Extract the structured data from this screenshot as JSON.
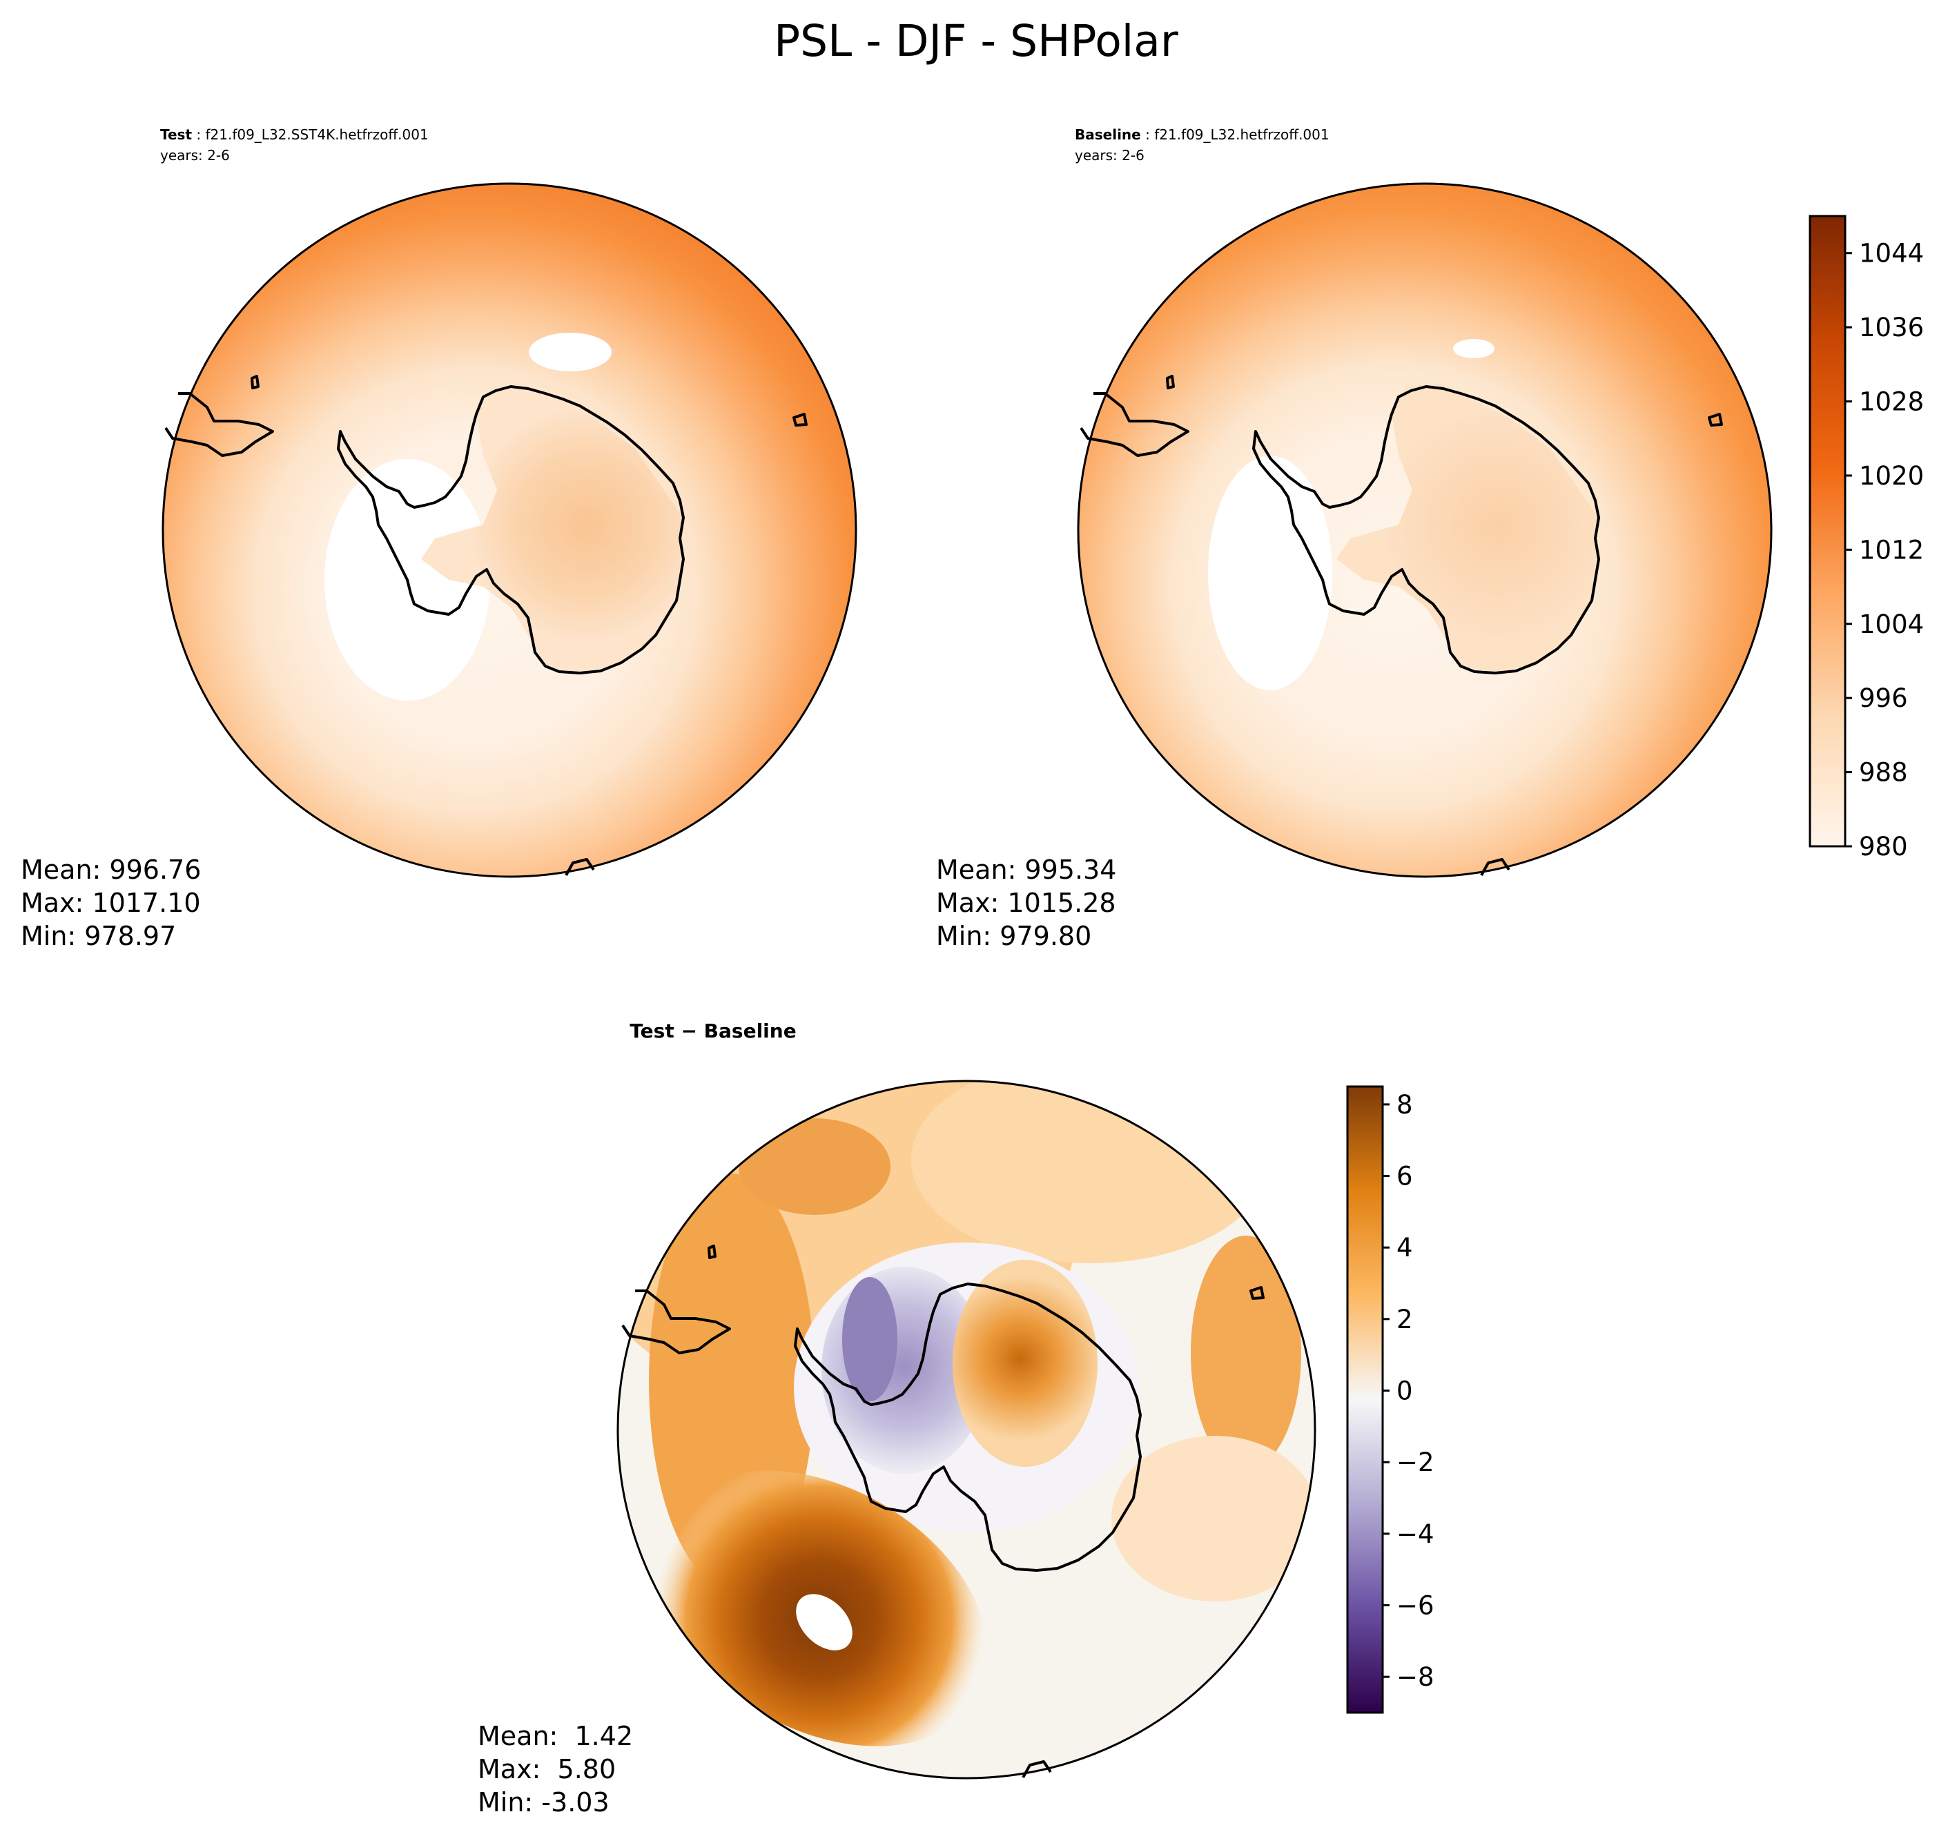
{
  "figure_title": "PSL - DJF - SHPolar",
  "chart_data": [
    {
      "type": "heatmap",
      "projection": "south-polar-stereographic",
      "panel": "test",
      "label_bold": "Test",
      "case_name": "f21.f09_L32.SST4K.hetfrzoff.001",
      "years_text": "years: 2-6",
      "stats": {
        "mean": "Mean: 996.76",
        "max": "Max: 1017.10",
        "min": "Min: 978.97"
      },
      "field_range": [
        978.97,
        1017.1
      ]
    },
    {
      "type": "heatmap",
      "projection": "south-polar-stereographic",
      "panel": "baseline",
      "label_bold": "Baseline",
      "case_name": "f21.f09_L32.hetfrzoff.001",
      "years_text": "years: 2-6",
      "stats": {
        "mean": "Mean: 995.34",
        "max": "Max: 1015.28",
        "min": "Min: 979.80"
      },
      "field_range": [
        979.8,
        1015.28
      ],
      "colorbar": {
        "colormap": "Oranges",
        "vmin": 980,
        "vmax": 1048,
        "ticks": [
          980,
          988,
          996,
          1004,
          1012,
          1020,
          1028,
          1036,
          1044
        ],
        "tick_labels": [
          "980",
          "988",
          "996",
          "1004",
          "1012",
          "1020",
          "1028",
          "1036",
          "1044"
        ],
        "colors": [
          "#fff5eb",
          "#fdd9b4",
          "#fda762",
          "#f16913",
          "#c94703",
          "#7f2704"
        ]
      }
    },
    {
      "type": "heatmap",
      "projection": "south-polar-stereographic",
      "panel": "difference",
      "title": "Test − Baseline",
      "stats": {
        "mean": "Mean:  1.42",
        "max": "Max:  5.80",
        "min": "Min: -3.03"
      },
      "field_range": [
        -3.03,
        5.8
      ],
      "colorbar": {
        "colormap": "PuOr_r",
        "vmin": -9,
        "vmax": 8.5,
        "ticks": [
          -8,
          -6,
          -4,
          -2,
          0,
          2,
          4,
          6,
          8
        ],
        "tick_labels": [
          "−8",
          "−6",
          "−4",
          "−2",
          "0",
          "2",
          "4",
          "6",
          "8"
        ],
        "colors": [
          "#2d004b",
          "#6a51a3",
          "#b2abd2",
          "#f7f7f7",
          "#fdb863",
          "#e08214",
          "#7f3b08"
        ]
      }
    }
  ]
}
